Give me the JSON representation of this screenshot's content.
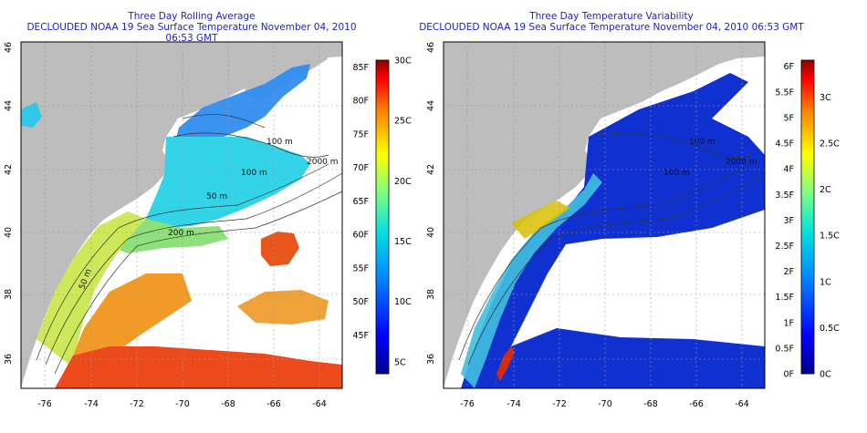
{
  "panels": [
    {
      "title": "Three Day Rolling Average",
      "subtitle": "DECLOUDED NOAA 19 Sea Surface Temperature November 04, 2010 06:53 GMT",
      "lon_ticks": [
        "-76",
        "-74",
        "-72",
        "-70",
        "-68",
        "-66",
        "-64"
      ],
      "lat_ticks": [
        "36",
        "38",
        "40",
        "42",
        "44",
        "46"
      ],
      "contour_labels": [
        "100 m",
        "100 m",
        "2000 m",
        "50 m",
        "200 m",
        "50 m"
      ],
      "colorbar": {
        "left_labels": [
          "85F",
          "80F",
          "75F",
          "70F",
          "65F",
          "60F",
          "55F",
          "50F",
          "45F"
        ],
        "right_labels": [
          "30C",
          "25C",
          "20C",
          "15C",
          "10C",
          "5C"
        ],
        "min_c": 4,
        "max_c": 30
      }
    },
    {
      "title": "Three Day Temperature Variability",
      "subtitle": "DECLOUDED NOAA 19 Sea Surface Temperature November 04, 2010 06:53 GMT",
      "lon_ticks": [
        "-76",
        "-74",
        "-72",
        "-70",
        "-68",
        "-66",
        "-64"
      ],
      "lat_ticks": [
        "36",
        "38",
        "40",
        "42",
        "44",
        "46"
      ],
      "contour_labels": [
        "100 m",
        "100 m",
        "2000 m"
      ],
      "colorbar": {
        "left_labels": [
          "6F",
          "5.5F",
          "5F",
          "4.5F",
          "4F",
          "3.5F",
          "3F",
          "2.5F",
          "2F",
          "1.5F",
          "1F",
          "0.5F",
          "0F"
        ],
        "right_labels": [
          "3C",
          "2.5C",
          "2C",
          "1.5C",
          "1C",
          "0.5C",
          "0C"
        ],
        "min_c": 0,
        "max_c": 3.4
      }
    }
  ],
  "colors": {
    "title": "#1f1fbf",
    "land": "#bdbdbd",
    "water_missing": "#ffffff",
    "contour": "#333333",
    "grid": "#9a9a9a"
  }
}
